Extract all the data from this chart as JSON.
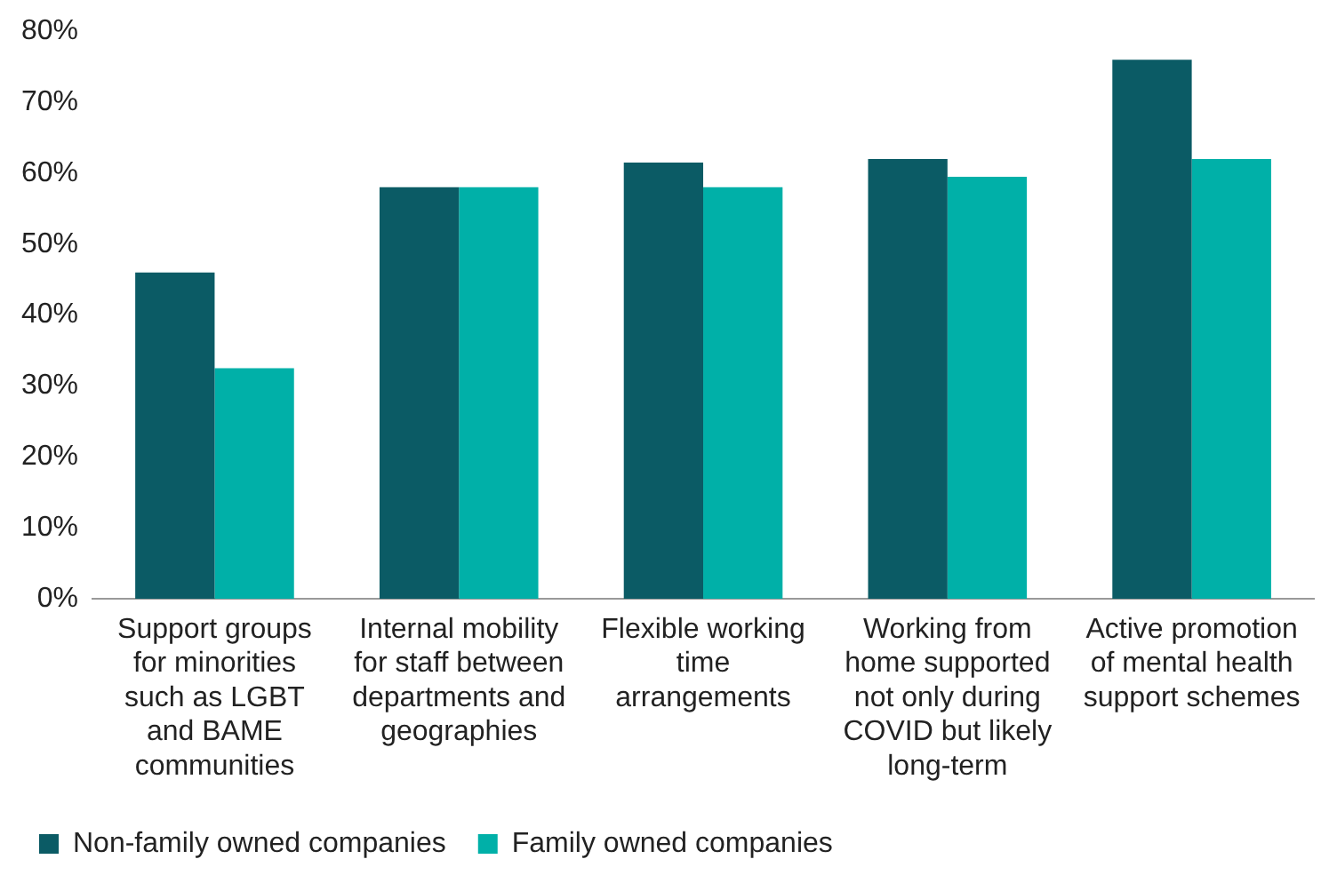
{
  "chart_data": {
    "type": "bar",
    "categories": [
      "Support groups for minorities such as LGBT and BAME communities",
      "Internal mobility for staff between departments and geographies",
      "Flexible working time arrangements",
      "Working from home supported not only during COVID but likely long-term",
      "Active promotion of mental health support schemes"
    ],
    "series": [
      {
        "name": "Non-family owned companies",
        "color": "#0b5b65",
        "values": [
          46,
          58,
          61.5,
          62,
          76
        ]
      },
      {
        "name": "Family owned companies",
        "color": "#00b0a8",
        "values": [
          32.5,
          58,
          58,
          59.5,
          62
        ]
      }
    ],
    "ylim": [
      0,
      80
    ],
    "yticks": [
      {
        "value": 0,
        "label": "0%"
      },
      {
        "value": 10,
        "label": "10%"
      },
      {
        "value": 20,
        "label": "20%"
      },
      {
        "value": 30,
        "label": "30%"
      },
      {
        "value": 40,
        "label": "40%"
      },
      {
        "value": 50,
        "label": "50%"
      },
      {
        "value": 60,
        "label": "60%"
      },
      {
        "value": 70,
        "label": "70%"
      },
      {
        "value": 80,
        "label": "80%"
      }
    ],
    "grid": false,
    "legend": "bottom left"
  }
}
